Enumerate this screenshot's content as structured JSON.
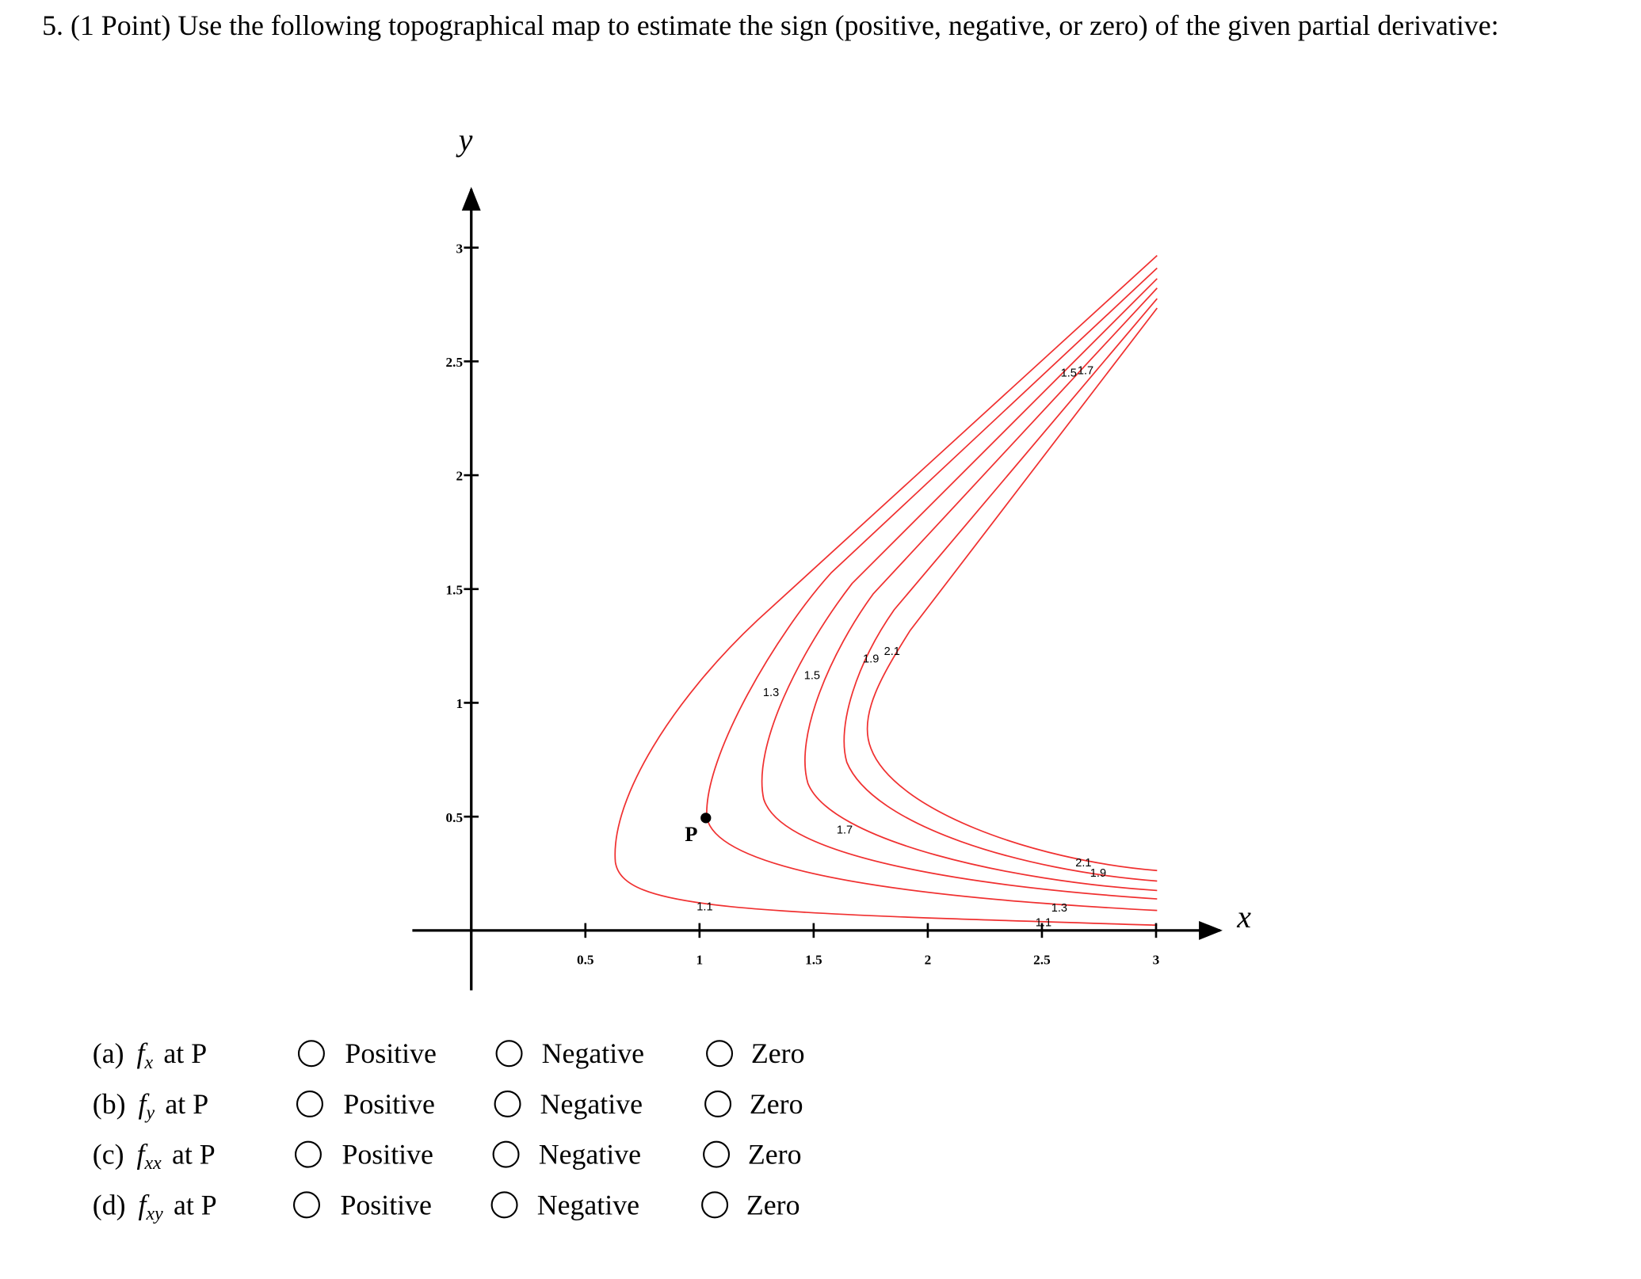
{
  "question": {
    "number": "5.",
    "text": "(1 Point) Use the following topographical map to estimate the sign (positive, negative, or zero) of the given partial derivative:"
  },
  "figure": {
    "x_label": "x",
    "y_label": "y",
    "xticks": [
      0.5,
      1,
      1.5,
      2,
      2.5,
      3
    ],
    "yticks": [
      0.5,
      1,
      1.5,
      2,
      2.5,
      3
    ],
    "contour_labels": [
      "1.1",
      "1.1",
      "1.3",
      "1.3",
      "1.5",
      "1.5",
      "1.7",
      "1.7",
      "1.9",
      "1.9",
      "2.1",
      "2.1"
    ],
    "point": {
      "label": "P"
    }
  },
  "options": [
    "Positive",
    "Negative",
    "Zero"
  ],
  "parts": [
    {
      "prefix": "(a)",
      "func": "f",
      "sub": "x",
      "suffix": "at P"
    },
    {
      "prefix": "(b)",
      "func": "f",
      "sub": "y",
      "suffix": "at P"
    },
    {
      "prefix": "(c)",
      "func": "f",
      "sub": "xx",
      "suffix": "at P"
    },
    {
      "prefix": "(d)",
      "func": "f",
      "sub": "xy",
      "suffix": "at P"
    }
  ]
}
